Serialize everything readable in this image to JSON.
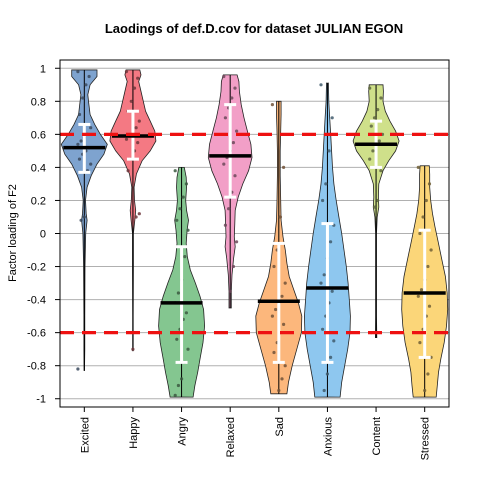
{
  "chart_data": {
    "type": "violin",
    "title": "Laodings of def.D.cov for dataset JULIAN EGON",
    "xlabel": "",
    "ylabel": "Factor loading of F2",
    "ylim": [
      -1.05,
      1.05
    ],
    "y_ticks": [
      1,
      0.8,
      0.6,
      0.4,
      0.2,
      0,
      -0.2,
      -0.4,
      -0.6,
      -0.8,
      -1
    ],
    "y_tick_labels": [
      "1",
      "0.8",
      "0.6",
      "0.4",
      "0.2",
      "0",
      "-0.2",
      "-0.4",
      "-0.6",
      "-0.8",
      "-1"
    ],
    "grid": "horizontal",
    "reference_lines": [
      0.6,
      -0.6
    ],
    "reference_line_color": "#ee1111",
    "categories": [
      "Excited",
      "Happy",
      "Angry",
      "Relaxed",
      "Sad",
      "Anxious",
      "Content",
      "Stressed"
    ],
    "colors": [
      "#7ea3cf",
      "#f47983",
      "#84c690",
      "#f29fc7",
      "#fcb77c",
      "#8ec7ef",
      "#cfe08a",
      "#fbd679"
    ],
    "medians": [
      0.52,
      0.59,
      -0.42,
      0.47,
      -0.41,
      -0.33,
      0.54,
      -0.36
    ],
    "min": [
      -0.83,
      -0.71,
      -0.99,
      -0.45,
      -0.97,
      -0.99,
      -0.63,
      -0.99
    ],
    "max": [
      0.99,
      0.99,
      0.4,
      0.96,
      0.8,
      0.91,
      0.9,
      0.41
    ],
    "iqr_low": [
      0.37,
      0.45,
      -0.78,
      0.22,
      -0.78,
      -0.78,
      0.4,
      -0.75
    ],
    "iqr_high": [
      0.66,
      0.74,
      -0.08,
      0.78,
      -0.06,
      0.06,
      0.68,
      0.02
    ],
    "densities": [
      [
        [
          -0.83,
          0.01
        ],
        [
          -0.7,
          0.02
        ],
        [
          -0.5,
          0.02
        ],
        [
          -0.2,
          0.03
        ],
        [
          0.0,
          0.06
        ],
        [
          0.08,
          0.12
        ],
        [
          0.12,
          0.08
        ],
        [
          0.2,
          0.05
        ],
        [
          0.28,
          0.12
        ],
        [
          0.35,
          0.3
        ],
        [
          0.42,
          0.55
        ],
        [
          0.48,
          0.85
        ],
        [
          0.54,
          1.0
        ],
        [
          0.6,
          0.7
        ],
        [
          0.66,
          0.45
        ],
        [
          0.72,
          0.25
        ],
        [
          0.78,
          0.2
        ],
        [
          0.84,
          0.15
        ],
        [
          0.9,
          0.25
        ],
        [
          0.95,
          0.55
        ],
        [
          0.99,
          0.55
        ]
      ],
      [
        [
          -0.71,
          0.01
        ],
        [
          -0.5,
          0.01
        ],
        [
          -0.2,
          0.02
        ],
        [
          0.0,
          0.02
        ],
        [
          0.08,
          0.08
        ],
        [
          0.14,
          0.12
        ],
        [
          0.2,
          0.07
        ],
        [
          0.28,
          0.05
        ],
        [
          0.36,
          0.15
        ],
        [
          0.44,
          0.4
        ],
        [
          0.5,
          0.75
        ],
        [
          0.56,
          1.0
        ],
        [
          0.62,
          0.95
        ],
        [
          0.68,
          0.75
        ],
        [
          0.74,
          0.55
        ],
        [
          0.8,
          0.45
        ],
        [
          0.86,
          0.35
        ],
        [
          0.92,
          0.25
        ],
        [
          0.96,
          0.35
        ],
        [
          0.99,
          0.3
        ]
      ],
      [
        [
          -0.99,
          0.5
        ],
        [
          -0.92,
          0.58
        ],
        [
          -0.84,
          0.7
        ],
        [
          -0.76,
          0.8
        ],
        [
          -0.66,
          0.93
        ],
        [
          -0.56,
          1.0
        ],
        [
          -0.46,
          0.96
        ],
        [
          -0.38,
          0.8
        ],
        [
          -0.3,
          0.6
        ],
        [
          -0.22,
          0.38
        ],
        [
          -0.14,
          0.25
        ],
        [
          -0.06,
          0.2
        ],
        [
          0.02,
          0.24
        ],
        [
          0.08,
          0.3
        ],
        [
          0.14,
          0.22
        ],
        [
          0.2,
          0.18
        ],
        [
          0.28,
          0.22
        ],
        [
          0.34,
          0.2
        ],
        [
          0.4,
          0.12
        ]
      ],
      [
        [
          -0.45,
          0.05
        ],
        [
          -0.35,
          0.05
        ],
        [
          -0.25,
          0.08
        ],
        [
          -0.15,
          0.15
        ],
        [
          -0.08,
          0.22
        ],
        [
          -0.02,
          0.18
        ],
        [
          0.06,
          0.2
        ],
        [
          0.14,
          0.22
        ],
        [
          0.22,
          0.35
        ],
        [
          0.3,
          0.55
        ],
        [
          0.38,
          0.8
        ],
        [
          0.46,
          0.95
        ],
        [
          0.54,
          0.9
        ],
        [
          0.62,
          0.75
        ],
        [
          0.7,
          0.6
        ],
        [
          0.78,
          0.48
        ],
        [
          0.86,
          0.4
        ],
        [
          0.92,
          0.38
        ],
        [
          0.96,
          0.3
        ]
      ],
      [
        [
          -0.97,
          0.35
        ],
        [
          -0.9,
          0.42
        ],
        [
          -0.8,
          0.58
        ],
        [
          -0.7,
          0.78
        ],
        [
          -0.6,
          0.98
        ],
        [
          -0.5,
          1.0
        ],
        [
          -0.42,
          0.85
        ],
        [
          -0.34,
          0.65
        ],
        [
          -0.26,
          0.45
        ],
        [
          -0.18,
          0.35
        ],
        [
          -0.1,
          0.28
        ],
        [
          -0.02,
          0.18
        ],
        [
          0.08,
          0.1
        ],
        [
          0.2,
          0.08
        ],
        [
          0.35,
          0.06
        ],
        [
          0.5,
          0.06
        ],
        [
          0.62,
          0.08
        ],
        [
          0.72,
          0.1
        ],
        [
          0.8,
          0.1
        ]
      ],
      [
        [
          -0.99,
          0.55
        ],
        [
          -0.9,
          0.62
        ],
        [
          -0.8,
          0.75
        ],
        [
          -0.7,
          0.88
        ],
        [
          -0.6,
          0.98
        ],
        [
          -0.5,
          1.0
        ],
        [
          -0.4,
          0.95
        ],
        [
          -0.3,
          0.9
        ],
        [
          -0.2,
          0.82
        ],
        [
          -0.1,
          0.72
        ],
        [
          0.0,
          0.62
        ],
        [
          0.1,
          0.5
        ],
        [
          0.2,
          0.38
        ],
        [
          0.3,
          0.28
        ],
        [
          0.4,
          0.22
        ],
        [
          0.5,
          0.18
        ],
        [
          0.6,
          0.14
        ],
        [
          0.7,
          0.1
        ],
        [
          0.8,
          0.06
        ],
        [
          0.91,
          0.04
        ]
      ],
      [
        [
          -0.63,
          0.03
        ],
        [
          -0.5,
          0.02
        ],
        [
          -0.2,
          0.02
        ],
        [
          0.0,
          0.02
        ],
        [
          0.1,
          0.05
        ],
        [
          0.16,
          0.12
        ],
        [
          0.22,
          0.1
        ],
        [
          0.3,
          0.12
        ],
        [
          0.38,
          0.3
        ],
        [
          0.44,
          0.55
        ],
        [
          0.5,
          0.85
        ],
        [
          0.56,
          1.0
        ],
        [
          0.62,
          0.85
        ],
        [
          0.68,
          0.6
        ],
        [
          0.74,
          0.4
        ],
        [
          0.8,
          0.3
        ],
        [
          0.86,
          0.32
        ],
        [
          0.9,
          0.3
        ]
      ],
      [
        [
          -0.99,
          0.5
        ],
        [
          -0.92,
          0.55
        ],
        [
          -0.84,
          0.6
        ],
        [
          -0.76,
          0.7
        ],
        [
          -0.66,
          0.85
        ],
        [
          -0.56,
          0.95
        ],
        [
          -0.46,
          1.0
        ],
        [
          -0.36,
          0.98
        ],
        [
          -0.26,
          0.9
        ],
        [
          -0.16,
          0.75
        ],
        [
          -0.06,
          0.6
        ],
        [
          0.04,
          0.45
        ],
        [
          0.12,
          0.34
        ],
        [
          0.2,
          0.26
        ],
        [
          0.28,
          0.22
        ],
        [
          0.36,
          0.22
        ],
        [
          0.41,
          0.2
        ]
      ]
    ],
    "points": [
      [
        0.98,
        0.95,
        0.9,
        0.82,
        0.72,
        0.64,
        0.6,
        0.58,
        0.56,
        0.54,
        0.52,
        0.5,
        0.48,
        0.45,
        0.42,
        0.38,
        0.1,
        0.08,
        -0.82
      ],
      [
        0.98,
        0.94,
        0.88,
        0.8,
        0.74,
        0.68,
        0.64,
        0.61,
        0.59,
        0.57,
        0.55,
        0.5,
        0.45,
        0.38,
        0.12,
        0.1,
        -0.7
      ],
      [
        0.38,
        0.3,
        0.22,
        0.15,
        0.08,
        0.02,
        -0.14,
        -0.28,
        -0.36,
        -0.42,
        -0.48,
        -0.52,
        -0.58,
        -0.64,
        -0.7,
        -0.78,
        -0.88,
        -0.92,
        -0.98
      ],
      [
        0.95,
        0.88,
        0.82,
        0.76,
        0.7,
        0.62,
        0.55,
        0.5,
        0.46,
        0.42,
        0.35,
        0.25,
        0.15,
        0.05,
        -0.05,
        -0.2,
        -0.35
      ],
      [
        0.78,
        0.4,
        0.1,
        -0.1,
        -0.2,
        -0.3,
        -0.38,
        -0.42,
        -0.46,
        -0.5,
        -0.55,
        -0.6,
        -0.66,
        -0.72,
        -0.8,
        -0.88,
        -0.95
      ],
      [
        0.9,
        0.7,
        0.5,
        0.3,
        0.2,
        0.05,
        -0.05,
        -0.15,
        -0.25,
        -0.3,
        -0.35,
        -0.42,
        -0.5,
        -0.58,
        -0.65,
        -0.75,
        -0.85,
        -0.95
      ],
      [
        0.88,
        0.82,
        0.75,
        0.7,
        0.65,
        0.6,
        0.56,
        0.54,
        0.5,
        0.45,
        0.38,
        0.2,
        0.16,
        -0.6
      ],
      [
        0.4,
        0.3,
        0.2,
        0.1,
        0.0,
        -0.1,
        -0.2,
        -0.28,
        -0.34,
        -0.38,
        -0.44,
        -0.5,
        -0.58,
        -0.66,
        -0.75,
        -0.85,
        -0.95
      ]
    ]
  }
}
